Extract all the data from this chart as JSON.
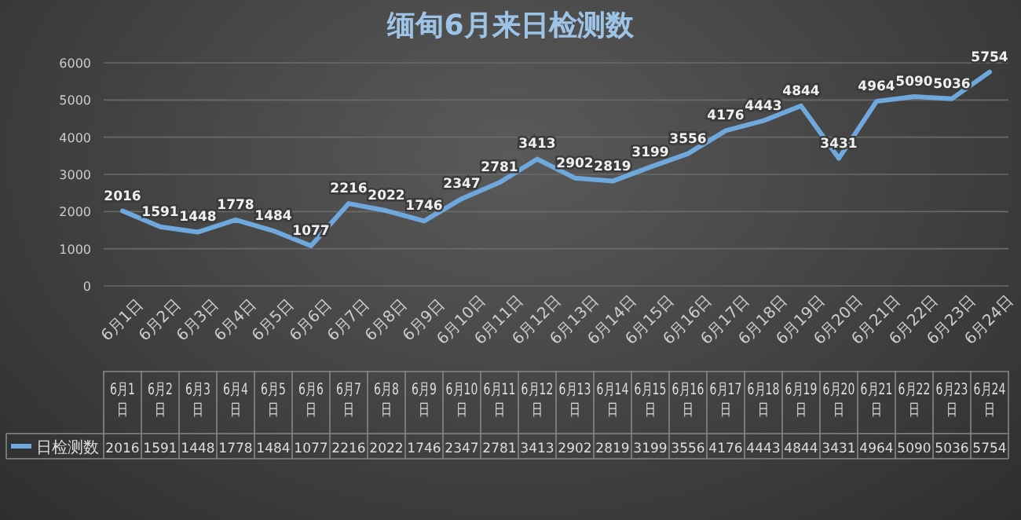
{
  "chart_data": [
    {
      "type": "line",
      "title": "缅甸6月来日检测数",
      "categories": [
        "6月1日",
        "6月2日",
        "6月3日",
        "6月4日",
        "6月5日",
        "6月6日",
        "6月7日",
        "6月8日",
        "6月9日",
        "6月10日",
        "6月11日",
        "6月12日",
        "6月13日",
        "6月14日",
        "6月15日",
        "6月16日",
        "6月17日",
        "6月18日",
        "6月19日",
        "6月20日",
        "6月21日",
        "6月22日",
        "6月23日",
        "6月24日"
      ],
      "series": [
        {
          "color": "#6fa8dc",
          "values": [
            2016,
            1591,
            1448,
            1778,
            1484,
            1077,
            2216,
            2022,
            1746,
            2347,
            2781,
            3413,
            2902,
            2819,
            3199,
            3556,
            4176,
            4443,
            4844,
            3431,
            4964,
            5090,
            5036,
            5754
          ],
          "value_labels": [
            "2016",
            "1591",
            "1448",
            "1778",
            "1484",
            "1077",
            "2216",
            "2022",
            "1746",
            "2347",
            "2781",
            "3413",
            "2902",
            "2819",
            "3199",
            "3556",
            "4176",
            "4443",
            "4844",
            "3431",
            "4964",
            "5090",
            "5036",
            "5754"
          ]
        }
      ],
      "ylim": [
        0,
        6000
      ],
      "yticks": [
        0,
        1000,
        2000,
        3000,
        4000,
        5000,
        6000
      ],
      "grid": "y"
    },
    {
      "type": "other",
      "categories": [
        "6月1日",
        "6月2日",
        "6月3日",
        "6月4日",
        "6月5日",
        "6月6日",
        "6月7日",
        "6月8日",
        "6月9日",
        "6月10日",
        "6月11日",
        "6月12日",
        "6月13日",
        "6月14日",
        "6月15日",
        "6月16日",
        "6月17日",
        "6月18日",
        "6月19日",
        "6月20日",
        "6月21日",
        "6月22日",
        "6月23日",
        "6月24日"
      ],
      "series": [
        {
          "name": "日检测数",
          "color": "#6fa8dc",
          "values": [
            2016,
            1591,
            1448,
            1778,
            1484,
            1077,
            2216,
            2022,
            1746,
            2347,
            2781,
            3413,
            2902,
            2819,
            3199,
            3556,
            4176,
            4443,
            4844,
            3431,
            4964,
            5090,
            5036,
            5754
          ]
        }
      ],
      "data_labels": true,
      "legend": "bottom"
    }
  ]
}
